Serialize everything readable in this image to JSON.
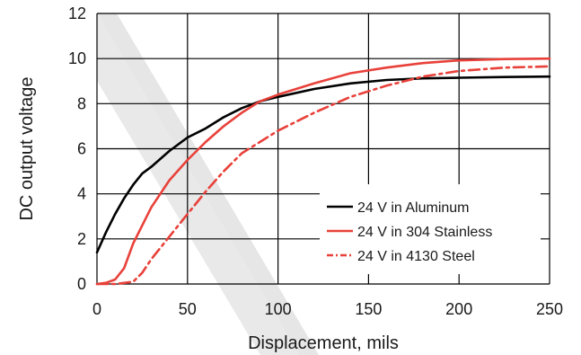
{
  "chart_data": {
    "type": "line",
    "xlabel": "Displacement, mils",
    "ylabel": "DC output voltage",
    "xlim": [
      0,
      250
    ],
    "ylim": [
      0,
      12
    ],
    "xticks": [
      0,
      50,
      100,
      150,
      200,
      250
    ],
    "yticks": [
      0,
      2,
      4,
      6,
      8,
      10,
      12
    ],
    "grid": true,
    "legend_position": "bottom-right",
    "series": [
      {
        "name": "24 V in Aluminum",
        "color": "#000000",
        "dash": "solid",
        "points": [
          [
            0,
            1.4
          ],
          [
            5,
            2.3
          ],
          [
            10,
            3.1
          ],
          [
            15,
            3.8
          ],
          [
            20,
            4.4
          ],
          [
            25,
            4.9
          ],
          [
            30,
            5.2
          ],
          [
            40,
            5.9
          ],
          [
            50,
            6.5
          ],
          [
            60,
            6.9
          ],
          [
            70,
            7.4
          ],
          [
            80,
            7.8
          ],
          [
            90,
            8.1
          ],
          [
            100,
            8.3
          ],
          [
            120,
            8.65
          ],
          [
            140,
            8.9
          ],
          [
            160,
            9.05
          ],
          [
            180,
            9.12
          ],
          [
            200,
            9.15
          ],
          [
            225,
            9.18
          ],
          [
            250,
            9.2
          ]
        ]
      },
      {
        "name": "24 V in 304 Stainless",
        "color": "#e8413a",
        "dash": "solid",
        "points": [
          [
            0,
            0
          ],
          [
            5,
            0.05
          ],
          [
            10,
            0.2
          ],
          [
            15,
            0.7
          ],
          [
            20,
            1.8
          ],
          [
            25,
            2.6
          ],
          [
            30,
            3.4
          ],
          [
            40,
            4.6
          ],
          [
            50,
            5.5
          ],
          [
            60,
            6.3
          ],
          [
            70,
            7.0
          ],
          [
            80,
            7.6
          ],
          [
            90,
            8.1
          ],
          [
            100,
            8.4
          ],
          [
            120,
            8.9
          ],
          [
            140,
            9.35
          ],
          [
            160,
            9.6
          ],
          [
            180,
            9.8
          ],
          [
            200,
            9.92
          ],
          [
            225,
            9.98
          ],
          [
            250,
            10.0
          ]
        ]
      },
      {
        "name": "24 V in 4130 Steel",
        "color": "#e8413a",
        "dash": "dashdot",
        "points": [
          [
            0,
            0
          ],
          [
            10,
            0
          ],
          [
            20,
            0.1
          ],
          [
            25,
            0.5
          ],
          [
            30,
            1.1
          ],
          [
            40,
            2.1
          ],
          [
            50,
            3.1
          ],
          [
            60,
            4.1
          ],
          [
            70,
            5.0
          ],
          [
            80,
            5.8
          ],
          [
            90,
            6.3
          ],
          [
            100,
            6.8
          ],
          [
            120,
            7.6
          ],
          [
            140,
            8.3
          ],
          [
            160,
            8.8
          ],
          [
            180,
            9.2
          ],
          [
            200,
            9.45
          ],
          [
            225,
            9.6
          ],
          [
            250,
            9.65
          ]
        ]
      }
    ]
  }
}
